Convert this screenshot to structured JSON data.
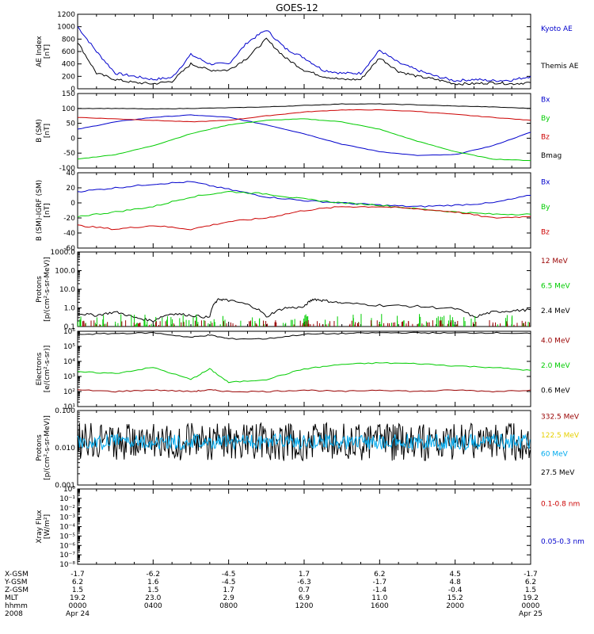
{
  "title": "GOES-12",
  "colors": {
    "black": "#000000",
    "blue": "#0000cc",
    "red": "#cc0000",
    "green": "#00cc00",
    "darkred": "#990000",
    "yellow": "#e6d000",
    "cyan": "#00aaee"
  },
  "xaxis": {
    "rows": [
      {
        "name": "X-GSM",
        "vals": [
          "-1.7",
          "-6.2",
          "-4.5",
          "1.7",
          "6.2",
          "4.5",
          "-1.7"
        ]
      },
      {
        "name": "Y-GSM",
        "vals": [
          "6.2",
          "1.6",
          "-4.5",
          "-6.3",
          "-1.7",
          "4.8",
          "6.2"
        ]
      },
      {
        "name": "Z-GSM",
        "vals": [
          "1.5",
          "1.5",
          "1.7",
          "0.7",
          "-1.4",
          "-0.4",
          "1.5"
        ]
      },
      {
        "name": "MLT",
        "vals": [
          "19.2",
          "23.0",
          "2.9",
          "6.9",
          "11.0",
          "15.2",
          "19.2"
        ]
      },
      {
        "name": "hhmm",
        "vals": [
          "0000",
          "0400",
          "0800",
          "1200",
          "1600",
          "2000",
          "0000"
        ]
      },
      {
        "name": "2008",
        "vals": [
          "Apr 24",
          "",
          "",
          "",
          "",
          "",
          "Apr 25"
        ]
      }
    ]
  },
  "chart_data": [
    {
      "type": "line",
      "panel": "ae",
      "ylabel": "AE Index\n[nT]",
      "ylim": [
        0,
        1200
      ],
      "yticks": [
        "0",
        "200",
        "400",
        "600",
        "800",
        "1000",
        "1200"
      ],
      "legend": [
        {
          "name": "Kyoto AE",
          "color": "blue"
        },
        {
          "name": "Themis AE",
          "color": "black"
        }
      ],
      "x": [
        0,
        1,
        2,
        3,
        4,
        5,
        6,
        7,
        8,
        9,
        10,
        11,
        12,
        13,
        14,
        15,
        16,
        17,
        18,
        19,
        20,
        21,
        22,
        23,
        24
      ],
      "series": [
        {
          "name": "Kyoto AE",
          "color": "blue",
          "values": [
            1000,
            600,
            250,
            200,
            150,
            180,
            550,
            400,
            400,
            750,
            950,
            650,
            500,
            300,
            250,
            250,
            620,
            420,
            300,
            200,
            130,
            150,
            130,
            140,
            200
          ]
        },
        {
          "name": "Themis AE",
          "color": "black",
          "values": [
            750,
            250,
            150,
            100,
            80,
            120,
            400,
            300,
            300,
            500,
            800,
            500,
            300,
            200,
            150,
            150,
            500,
            280,
            200,
            150,
            80,
            80,
            100,
            80,
            100
          ]
        }
      ]
    },
    {
      "type": "line",
      "panel": "bgsm",
      "ylabel": "B (SM)\n[nT]",
      "ylim": [
        -100,
        150
      ],
      "yticks": [
        "-100",
        "-50",
        "0",
        "50",
        "100",
        "150"
      ],
      "legend": [
        {
          "name": "Bx",
          "color": "blue"
        },
        {
          "name": "By",
          "color": "green"
        },
        {
          "name": "Bz",
          "color": "red"
        },
        {
          "name": "Bmag",
          "color": "black"
        }
      ],
      "x": [
        0,
        2,
        4,
        6,
        8,
        10,
        12,
        14,
        16,
        18,
        20,
        22,
        24
      ],
      "series": [
        {
          "name": "Bx",
          "color": "blue",
          "values": [
            30,
            55,
            70,
            78,
            70,
            45,
            15,
            -20,
            -45,
            -58,
            -55,
            -25,
            20
          ]
        },
        {
          "name": "By",
          "color": "green",
          "values": [
            -70,
            -55,
            -25,
            15,
            45,
            60,
            65,
            55,
            30,
            -10,
            -45,
            -70,
            -75
          ]
        },
        {
          "name": "Bz",
          "color": "red",
          "values": [
            70,
            65,
            60,
            55,
            60,
            75,
            88,
            95,
            95,
            90,
            80,
            70,
            60
          ]
        },
        {
          "name": "Bmag",
          "color": "black",
          "values": [
            100,
            100,
            98,
            100,
            102,
            105,
            110,
            115,
            115,
            112,
            108,
            105,
            100
          ]
        }
      ]
    },
    {
      "type": "line",
      "panel": "bigrf",
      "ylabel": "B (SM)-IGRF (SM)\n[nT]",
      "ylim": [
        -60,
        40
      ],
      "yticks": [
        "-60",
        "-40",
        "-20",
        "0",
        "20",
        "40"
      ],
      "legend": [
        {
          "name": "Bx",
          "color": "blue"
        },
        {
          "name": "By",
          "color": "green"
        },
        {
          "name": "Bz",
          "color": "red"
        }
      ],
      "x": [
        0,
        2,
        4,
        6,
        8,
        10,
        12,
        14,
        16,
        18,
        20,
        22,
        24
      ],
      "series": [
        {
          "name": "Bx",
          "color": "blue",
          "values": [
            15,
            20,
            25,
            28,
            18,
            8,
            3,
            0,
            -3,
            -5,
            -3,
            0,
            10
          ]
        },
        {
          "name": "By",
          "color": "green",
          "values": [
            -18,
            -12,
            -5,
            8,
            15,
            12,
            5,
            0,
            -3,
            -8,
            -12,
            -15,
            -15
          ]
        },
        {
          "name": "Bz",
          "color": "red",
          "values": [
            -30,
            -35,
            -30,
            -35,
            -25,
            -20,
            -10,
            -5,
            -5,
            -8,
            -12,
            -20,
            -18
          ]
        }
      ]
    },
    {
      "type": "line",
      "panel": "protons1",
      "ylabel": "Protons\n[p/(cm²-s-sr-MeV)]",
      "ylim": [
        -1,
        3
      ],
      "log": true,
      "yticks": [
        "0.1",
        "1.0",
        "10.0",
        "100.0",
        "1000.0"
      ],
      "legend": [
        {
          "name": "12 MeV",
          "color": "darkred"
        },
        {
          "name": "6.5 MeV",
          "color": "green"
        },
        {
          "name": "2.4 MeV",
          "color": "black"
        }
      ],
      "x": [
        0,
        1,
        2,
        3,
        4,
        5,
        6,
        7,
        7.5,
        8,
        9,
        10,
        11,
        12,
        12.5,
        13,
        14,
        16,
        18,
        20,
        21,
        22,
        23,
        24
      ],
      "series": [
        {
          "name": "2.4 MeV",
          "color": "black",
          "values": [
            0.5,
            0.4,
            0.6,
            0.3,
            0.2,
            0.5,
            0.4,
            0.3,
            3,
            2.5,
            1.5,
            0.3,
            1,
            1.1,
            3,
            2.5,
            1.8,
            1.4,
            1.2,
            0.9,
            0.3,
            0.6,
            0.7,
            0.8
          ]
        }
      ]
    },
    {
      "type": "line",
      "panel": "electrons",
      "ylabel": "Electrons\n[e/(cm²-s-sr)]",
      "ylim": [
        1,
        6
      ],
      "log": true,
      "yticks": [
        "10¹",
        "10²",
        "10³",
        "10⁴",
        "10⁵",
        "10⁶"
      ],
      "legend": [
        {
          "name": "4.0 MeV",
          "color": "darkred"
        },
        {
          "name": "2.0 MeV",
          "color": "green"
        },
        {
          "name": "0.6 MeV",
          "color": "black"
        }
      ],
      "x": [
        0,
        2,
        4,
        6,
        7,
        8,
        10,
        12,
        14,
        16,
        18,
        20,
        22,
        24
      ],
      "series": [
        {
          "name": "0.6 MeV",
          "color": "black",
          "values": [
            5.8,
            5.85,
            5.9,
            5.6,
            5.75,
            5.5,
            5.5,
            5.8,
            5.85,
            5.9,
            5.9,
            5.88,
            5.9,
            5.85
          ]
        },
        {
          "name": "2.0 MeV",
          "color": "green",
          "values": [
            3.3,
            3.2,
            3.6,
            2.8,
            3.5,
            2.6,
            2.8,
            3.5,
            3.8,
            3.9,
            3.85,
            3.7,
            3.6,
            3.4
          ]
        },
        {
          "name": "4.0 MeV",
          "color": "darkred",
          "values": [
            2.1,
            2.0,
            2.1,
            2.0,
            2.1,
            2.0,
            2.0,
            2.1,
            2.0,
            2.1,
            2.0,
            2.1,
            2.0,
            2.1
          ]
        }
      ]
    },
    {
      "type": "line",
      "panel": "protons2",
      "ylabel": "Protons\n[p/(cm²-s-sr-MeV)]",
      "ylim": [
        -3,
        -1
      ],
      "log": true,
      "yticks": [
        "0.001",
        "0.010",
        "0.100"
      ],
      "legend": [
        {
          "name": "332.5 MeV",
          "color": "darkred"
        },
        {
          "name": "122.5 MeV",
          "color": "yellow"
        },
        {
          "name": "60 MeV",
          "color": "cyan"
        },
        {
          "name": "27.5 MeV",
          "color": "black"
        }
      ]
    },
    {
      "type": "line",
      "panel": "xray",
      "ylabel": "Xray Flux\n[W/m²]",
      "ylim": [
        -8,
        0
      ],
      "log": true,
      "yticks": [
        "10⁻⁸",
        "10⁻⁷",
        "10⁻⁶",
        "10⁻⁵",
        "10⁻⁴",
        "10⁻³",
        "10⁻²",
        "10⁻¹",
        "10⁰"
      ],
      "legend": [
        {
          "name": "0.1-0.8 nm",
          "color": "red"
        },
        {
          "name": "0.05-0.3 nm",
          "color": "blue"
        }
      ]
    }
  ]
}
